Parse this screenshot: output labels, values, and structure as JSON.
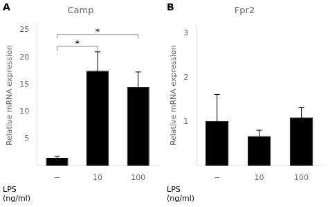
{
  "chart_data": [
    {
      "type": "bar",
      "title": "Camp",
      "categories": [
        "−",
        "10",
        "100"
      ],
      "values": [
        1.5,
        17.5,
        14.5
      ],
      "errors": [
        0.3,
        3.5,
        2.8
      ],
      "color": "#000000",
      "ylim": [
        0,
        26
      ],
      "yticks": [
        5,
        10,
        15,
        20,
        25
      ],
      "ylabel": "Relative mRNA expression",
      "grid": false,
      "annotations": [
        {
          "text": "A"
        },
        {
          "text": "LPS"
        },
        {
          "text": "(ng/ml)"
        },
        {
          "text": "*",
          "x": [
            "−",
            "10"
          ],
          "y": 22.0
        },
        {
          "text": "*",
          "x": [
            "−",
            "100"
          ],
          "y": 24.2
        }
      ]
    },
    {
      "type": "bar",
      "title": "Fpr2",
      "categories": [
        "−",
        "10",
        "100"
      ],
      "values": [
        1.02,
        0.68,
        1.1
      ],
      "errors": [
        0.6,
        0.13,
        0.22
      ],
      "color": "#000000",
      "ylim": [
        0,
        3.2
      ],
      "yticks": [
        1,
        2,
        3
      ],
      "ylabel": "Relative mRNA expression",
      "grid": false,
      "annotations": [
        {
          "text": "B"
        },
        {
          "text": "LPS"
        },
        {
          "text": "(ng/ml)"
        }
      ]
    }
  ]
}
